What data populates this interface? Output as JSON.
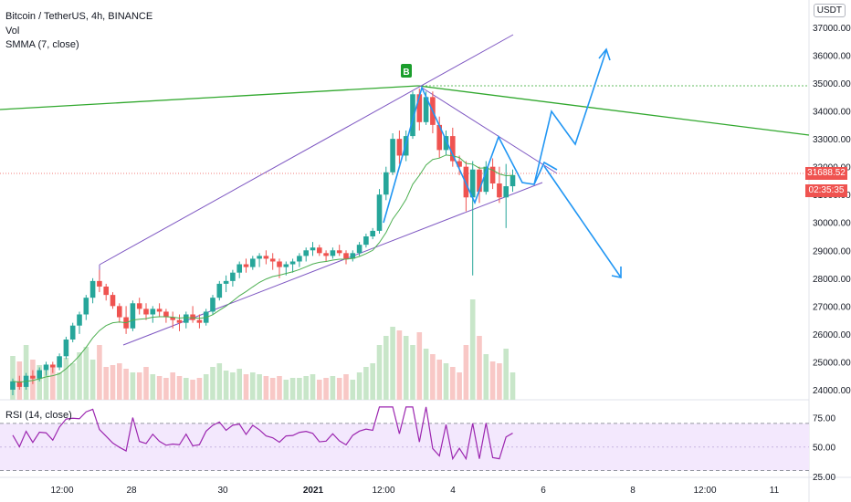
{
  "header": {
    "symbol_line": "Bitcoin / TetherUS, 4h, BINANCE",
    "vol_label": "Vol",
    "smma_label": "SMMA (7, close)",
    "rsi_label": "RSI (14, close)",
    "unit_badge": "USDT"
  },
  "price_tag": {
    "price": "31688.52",
    "countdown": "02:35:35"
  },
  "signal_marker": "B",
  "colors": {
    "up": "#26a69a",
    "down": "#ef5350",
    "smma": "#4caf50",
    "channel": "#7e57c2",
    "trendline": "#31a82e",
    "projection": "#2196f3",
    "rsi": "#9c27b0"
  },
  "chart_data": {
    "type": "candlestick",
    "price_axis": {
      "ticks": [
        "37000.00",
        "36000.00",
        "35000.00",
        "34000.00",
        "33000.00",
        "32000.00",
        "31000.00",
        "30000.00",
        "29000.00",
        "28000.00",
        "27000.00",
        "26000.00",
        "25000.00",
        "24000.00"
      ],
      "range": [
        23700,
        37300
      ]
    },
    "time_axis": {
      "ticks": [
        "12:00",
        "28",
        "30",
        "2021",
        "12:00",
        "4",
        "6",
        "8",
        "12:00",
        "11"
      ]
    },
    "candles": [
      [
        24000,
        24400,
        23800,
        24300
      ],
      [
        24300,
        24500,
        24000,
        24100
      ],
      [
        24100,
        24600,
        24000,
        24500
      ],
      [
        24500,
        24700,
        24200,
        24400
      ],
      [
        24400,
        24800,
        24300,
        24700
      ],
      [
        24700,
        25000,
        24500,
        24900
      ],
      [
        24900,
        25000,
        24600,
        24800
      ],
      [
        24800,
        25300,
        24700,
        25200
      ],
      [
        25200,
        25900,
        25100,
        25800
      ],
      [
        25800,
        26400,
        25700,
        26300
      ],
      [
        26300,
        26800,
        26000,
        26700
      ],
      [
        26700,
        27400,
        26500,
        27300
      ],
      [
        27300,
        28000,
        27100,
        27900
      ],
      [
        27900,
        28300,
        27500,
        27700
      ],
      [
        27700,
        27800,
        27200,
        27400
      ],
      [
        27400,
        27500,
        26900,
        27000
      ],
      [
        27000,
        27100,
        26400,
        26600
      ],
      [
        26600,
        27000,
        26000,
        26200
      ],
      [
        26200,
        27200,
        26100,
        27100
      ],
      [
        27100,
        27300,
        26700,
        26900
      ],
      [
        26900,
        27100,
        26500,
        26700
      ],
      [
        26700,
        27000,
        26400,
        26900
      ],
      [
        26900,
        27100,
        26600,
        26800
      ],
      [
        26800,
        26900,
        26400,
        26600
      ],
      [
        26600,
        26800,
        26200,
        26500
      ],
      [
        26500,
        26700,
        26100,
        26400
      ],
      [
        26400,
        26800,
        26200,
        26700
      ],
      [
        26700,
        27000,
        26400,
        26500
      ],
      [
        26500,
        26700,
        26200,
        26400
      ],
      [
        26400,
        26900,
        26300,
        26800
      ],
      [
        26800,
        27400,
        26700,
        27300
      ],
      [
        27300,
        27900,
        27200,
        27800
      ],
      [
        27800,
        28100,
        27500,
        27900
      ],
      [
        27900,
        28300,
        27700,
        28200
      ],
      [
        28200,
        28600,
        28000,
        28500
      ],
      [
        28500,
        28700,
        28200,
        28400
      ],
      [
        28400,
        28800,
        28300,
        28700
      ],
      [
        28700,
        28900,
        28400,
        28800
      ],
      [
        28800,
        29000,
        28500,
        28700
      ],
      [
        28700,
        28900,
        28300,
        28600
      ],
      [
        28600,
        28700,
        28000,
        28400
      ],
      [
        28400,
        28600,
        28100,
        28500
      ],
      [
        28500,
        28700,
        28200,
        28600
      ],
      [
        28600,
        28900,
        28400,
        28800
      ],
      [
        28800,
        29100,
        28600,
        29000
      ],
      [
        29000,
        29300,
        28800,
        29100
      ],
      [
        29100,
        29200,
        28800,
        28900
      ],
      [
        28900,
        29000,
        28600,
        28800
      ],
      [
        28800,
        29100,
        28700,
        29000
      ],
      [
        29000,
        29200,
        28800,
        28900
      ],
      [
        28900,
        29000,
        28500,
        28700
      ],
      [
        28700,
        29000,
        28600,
        28900
      ],
      [
        28900,
        29300,
        28800,
        29200
      ],
      [
        29200,
        29600,
        29100,
        29500
      ],
      [
        29500,
        29800,
        29400,
        29700
      ],
      [
        29700,
        31200,
        29600,
        31000
      ],
      [
        31000,
        32000,
        30800,
        31800
      ],
      [
        31800,
        33200,
        31700,
        33000
      ],
      [
        33000,
        33300,
        32100,
        32400
      ],
      [
        32400,
        33300,
        32200,
        33100
      ],
      [
        33100,
        34700,
        33000,
        34600
      ],
      [
        34600,
        34800,
        33300,
        33600
      ],
      [
        33600,
        34700,
        33500,
        34500
      ],
      [
        34500,
        34700,
        33200,
        33500
      ],
      [
        33500,
        33800,
        32300,
        32600
      ],
      [
        32600,
        33300,
        32400,
        33100
      ],
      [
        33100,
        33400,
        32000,
        32200
      ],
      [
        32200,
        32400,
        31700,
        32000
      ],
      [
        32000,
        32200,
        30400,
        30900
      ],
      [
        30900,
        32200,
        28100,
        31900
      ],
      [
        31900,
        32000,
        30700,
        31100
      ],
      [
        31100,
        32200,
        31000,
        32000
      ],
      [
        32000,
        32300,
        31200,
        31400
      ],
      [
        31400,
        32000,
        30700,
        30900
      ],
      [
        30900,
        32100,
        29800,
        31300
      ],
      [
        31300,
        31900,
        31100,
        31700
      ]
    ],
    "smma": [
      24300,
      24270,
      24300,
      24330,
      24390,
      24460,
      24500,
      24570,
      24750,
      24970,
      25220,
      25520,
      25860,
      26120,
      26300,
      26400,
      26430,
      26400,
      26500,
      26530,
      26550,
      26600,
      26620,
      26620,
      26600,
      26570,
      26590,
      26580,
      26560,
      26590,
      26690,
      26850,
      27000,
      27180,
      27370,
      27520,
      27690,
      27850,
      27970,
      28060,
      28110,
      28170,
      28230,
      28310,
      28410,
      28510,
      28570,
      28600,
      28650,
      28680,
      28680,
      28710,
      28780,
      28880,
      29000,
      29280,
      29640,
      30120,
      30450,
      30830,
      31370,
      31690,
      32060,
      32260,
      32310,
      32420,
      32390,
      32330,
      32120,
      32090,
      31950,
      31960,
      31880,
      31740,
      31680,
      31690
    ],
    "volume_bars": 76,
    "rsi": {
      "ticks": [
        "75.00",
        "50.00",
        "25.00"
      ],
      "upper": 70,
      "lower": 30,
      "range": [
        25,
        87
      ]
    }
  }
}
